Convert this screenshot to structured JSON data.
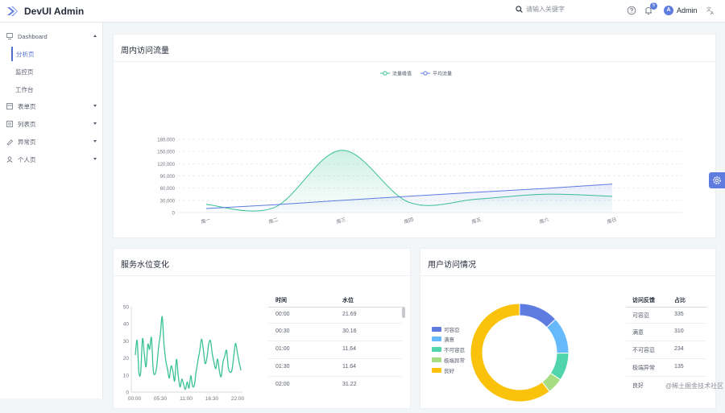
{
  "app": {
    "title": "DevUI Admin"
  },
  "header": {
    "search_placeholder": "请输入关键字",
    "notification_count": "5",
    "user_initial": "A",
    "user_name": "Admin"
  },
  "sidebar": {
    "items": [
      {
        "label": "Dashboard",
        "icon": "dashboard-icon",
        "expanded": true
      },
      {
        "label": "表单页",
        "icon": "form-icon"
      },
      {
        "label": "列表页",
        "icon": "list-icon"
      },
      {
        "label": "异常页",
        "icon": "exception-icon"
      },
      {
        "label": "个人页",
        "icon": "user-icon"
      }
    ],
    "sub_items": [
      {
        "label": "分析页",
        "active": true
      },
      {
        "label": "监控页"
      },
      {
        "label": "工作台"
      }
    ]
  },
  "weekly_card": {
    "title": "周内访问流量"
  },
  "service_card": {
    "title": "服务水位变化"
  },
  "user_card": {
    "title": "用户访问情况"
  },
  "water_table": {
    "headers": [
      "时间",
      "水位"
    ],
    "rows": [
      [
        "00:00",
        "21.69"
      ],
      [
        "00:30",
        "30.16"
      ],
      [
        "01:00",
        "11.64"
      ],
      [
        "01:30",
        "11.64"
      ],
      [
        "02:00",
        "31.22"
      ]
    ]
  },
  "visit_table": {
    "headers": [
      "访问反馈",
      "占比"
    ],
    "rows": [
      [
        "可容忍",
        "335"
      ],
      [
        "满意",
        "310"
      ],
      [
        "不可容忍",
        "234"
      ],
      [
        "极端异常",
        "135"
      ],
      [
        "良好",
        ""
      ]
    ]
  },
  "watermark": "@稀土掘金技术社区",
  "chart_data": [
    {
      "type": "line",
      "title": "周内访问流量",
      "categories": [
        "周一",
        "周二",
        "周三",
        "周四",
        "周五",
        "周六",
        "周日"
      ],
      "series": [
        {
          "name": "流量峰值",
          "color": "#3ac295",
          "values": [
            20000,
            12000,
            153000,
            25000,
            33000,
            45000,
            40000
          ]
        },
        {
          "name": "平均流量",
          "color": "#5e7ce0",
          "values": [
            10000,
            19000,
            30000,
            40000,
            50000,
            59000,
            70000
          ]
        }
      ],
      "ylim": [
        0,
        180000
      ],
      "yticks": [
        0,
        30000,
        60000,
        90000,
        120000,
        150000,
        180000
      ],
      "ytick_labels": [
        "0",
        "30,000",
        "60,000",
        "90,000",
        "120,000",
        "150,000",
        "180,000"
      ],
      "legend": "top-center"
    },
    {
      "type": "line",
      "title": "服务水位变化",
      "series": [
        {
          "name": "水位",
          "color": "#3ac295",
          "values": [
            21.7,
            30.2,
            11.6,
            11.6,
            31.2,
            22.4,
            14.8,
            27.9,
            25.0,
            31.9,
            13.1,
            10.5,
            15.3,
            26.4,
            33.8,
            44.2,
            28.4,
            18.6,
            13.4,
            8.2,
            15.3,
            12.1,
            6.5,
            19.2,
            9.4,
            3.0,
            7.6,
            4.4,
            1.6,
            5.9,
            2.3,
            9.6,
            3.5,
            4.2,
            12.0,
            18.3,
            24.2,
            31.0,
            25.1,
            16.8,
            19.9,
            28.0,
            30.1,
            22.6,
            17.2,
            13.8,
            19.4,
            12.3,
            9.1,
            17.5,
            21.0,
            24.4,
            14.3,
            11.7,
            12.8,
            20.7,
            28.5,
            23.4,
            17.6,
            12.8
          ]
        }
      ],
      "xtick_labels": [
        "00:00",
        "05:30",
        "11:00",
        "16:30",
        "22:00"
      ],
      "ylim": [
        0,
        50
      ],
      "yticks": [
        0,
        10,
        20,
        30,
        40,
        50
      ]
    },
    {
      "type": "pie",
      "title": "用户访问情况",
      "categories": [
        "可容忍",
        "满意",
        "不可容忍",
        "极端异常",
        "良好"
      ],
      "values": [
        335,
        310,
        234,
        135,
        1548
      ],
      "colors": [
        "#5e7ce0",
        "#66b9fb",
        "#50d4ab",
        "#a6dd82",
        "#fac20a"
      ],
      "legend": "left"
    }
  ]
}
